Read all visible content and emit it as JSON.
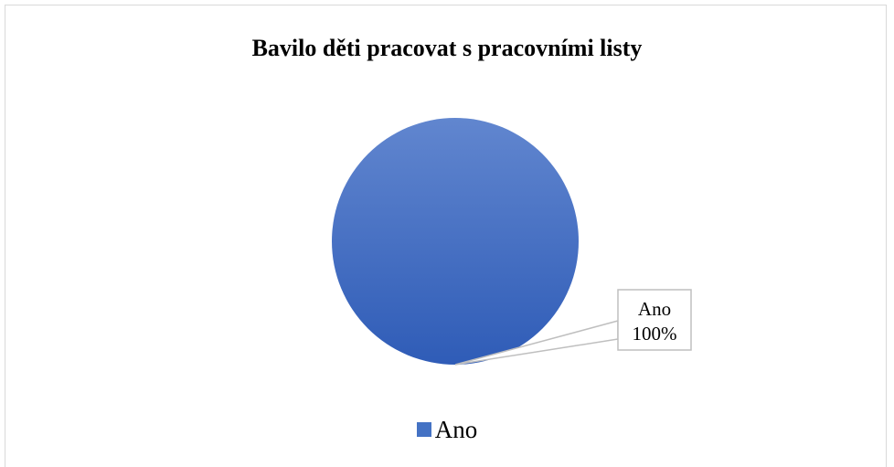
{
  "chart_data": {
    "type": "pie",
    "title": "Bavilo děti pracovat s pracovními listy",
    "categories": [
      "Ano"
    ],
    "values": [
      100
    ],
    "colors": [
      "#4472c4"
    ],
    "data_labels": [
      {
        "category": "Ano",
        "value": "100%"
      }
    ],
    "legend": {
      "placement": "bottom",
      "entries": [
        "Ano"
      ]
    }
  }
}
